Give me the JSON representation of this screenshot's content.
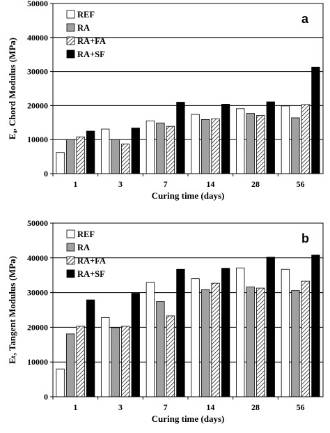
{
  "chart_data": [
    {
      "type": "bar",
      "panel_label": "a",
      "categories": [
        "1",
        "3",
        "7",
        "14",
        "28",
        "56"
      ],
      "series": [
        {
          "name": "REF",
          "values": [
            6200,
            13100,
            15500,
            17400,
            19100,
            19900
          ]
        },
        {
          "name": "RA",
          "values": [
            10000,
            10000,
            14900,
            15900,
            17700,
            16400
          ]
        },
        {
          "name": "RA+FA",
          "values": [
            10800,
            8700,
            13900,
            16100,
            17100,
            20300
          ]
        },
        {
          "name": "RA+SF",
          "values": [
            12500,
            13400,
            21000,
            20400,
            21100,
            31300
          ]
        }
      ],
      "xlabel": "Curing time (days)",
      "ylabel": "E₀, Chord Modulus (MPa)",
      "ylim": [
        0,
        50000
      ],
      "yticks": [
        "0",
        "10000",
        "20000",
        "30000",
        "40000",
        "50000"
      ],
      "grid": true,
      "legend_position": "top-left"
    },
    {
      "type": "bar",
      "panel_label": "b",
      "categories": [
        "1",
        "3",
        "7",
        "14",
        "28",
        "56"
      ],
      "series": [
        {
          "name": "REF",
          "values": [
            8000,
            22800,
            32900,
            34000,
            37100,
            36700
          ]
        },
        {
          "name": "RA",
          "values": [
            18100,
            19900,
            27400,
            30800,
            31600,
            30600
          ]
        },
        {
          "name": "RA+FA",
          "values": [
            20300,
            20300,
            23300,
            32700,
            31300,
            33300
          ]
        },
        {
          "name": "RA+SF",
          "values": [
            27900,
            29800,
            36700,
            37000,
            40200,
            40800
          ]
        }
      ],
      "xlabel": "Curing time (days)",
      "ylabel": "Eₜ, Tangent Modulus (MPa)",
      "ylim": [
        0,
        50000
      ],
      "yticks": [
        "0",
        "10000",
        "20000",
        "30000",
        "40000",
        "50000"
      ],
      "grid": true,
      "legend_position": "top-left"
    }
  ],
  "style": {
    "series_fills": [
      "#ffffff",
      "#a0a0a0",
      "hatch",
      "#000000"
    ]
  }
}
